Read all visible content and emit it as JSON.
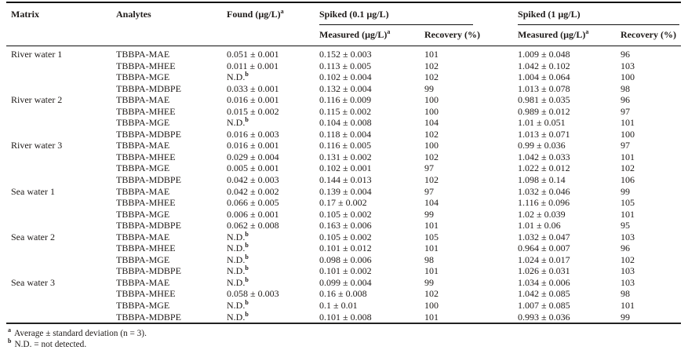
{
  "table": {
    "header": {
      "matrix": "Matrix",
      "analytes": "Analytes",
      "found": {
        "label": "Found (µg/L)",
        "sup": "a"
      },
      "spiked_01": "Spiked (0.1 µg/L)",
      "spiked_1": "Spiked (1 µg/L)",
      "measured": {
        "label": "Measured (µg/L)",
        "sup": "a"
      },
      "recovery": "Recovery (%)"
    },
    "groups": [
      {
        "matrix": "River water 1",
        "rows": [
          {
            "analyte": "TBBPA-MAE",
            "found": "0.051 ± 0.001",
            "m01": "0.152 ± 0.003",
            "r01": "101",
            "m1": "1.009 ± 0.048",
            "r1": "96"
          },
          {
            "analyte": "TBBPA-MHEE",
            "found": "0.011 ± 0.001",
            "m01": "0.113 ± 0.005",
            "r01": "102",
            "m1": "1.042 ± 0.102",
            "r1": "103"
          },
          {
            "analyte": "TBBPA-MGE",
            "found": "N.D.^b",
            "m01": "0.102 ± 0.004",
            "r01": "102",
            "m1": "1.004 ± 0.064",
            "r1": "100"
          },
          {
            "analyte": "TBBPA-MDBPE",
            "found": "0.033 ± 0.001",
            "m01": "0.132 ± 0.004",
            "r01": "99",
            "m1": "1.013 ± 0.078",
            "r1": "98"
          }
        ]
      },
      {
        "matrix": "River water 2",
        "rows": [
          {
            "analyte": "TBBPA-MAE",
            "found": "0.016 ± 0.001",
            "m01": "0.116 ± 0.009",
            "r01": "100",
            "m1": "0.981 ± 0.035",
            "r1": "96"
          },
          {
            "analyte": "TBBPA-MHEE",
            "found": "0.015 ± 0.002",
            "m01": "0.115 ± 0.002",
            "r01": "100",
            "m1": "0.989 ± 0.012",
            "r1": "97"
          },
          {
            "analyte": "TBBPA-MGE",
            "found": "N.D.^b",
            "m01": "0.104 ± 0.008",
            "r01": "104",
            "m1": "1.01 ± 0.051",
            "r1": "101"
          },
          {
            "analyte": "TBBPA-MDBPE",
            "found": "0.016 ± 0.003",
            "m01": "0.118 ± 0.004",
            "r01": "102",
            "m1": "1.013 ± 0.071",
            "r1": "100"
          }
        ]
      },
      {
        "matrix": "River water 3",
        "rows": [
          {
            "analyte": "TBBPA-MAE",
            "found": "0.016 ± 0.001",
            "m01": "0.116 ± 0.005",
            "r01": "100",
            "m1": "0.99 ± 0.036",
            "r1": "97"
          },
          {
            "analyte": "TBBPA-MHEE",
            "found": "0.029 ± 0.004",
            "m01": "0.131 ± 0.002",
            "r01": "102",
            "m1": "1.042 ± 0.033",
            "r1": "101"
          },
          {
            "analyte": "TBBPA-MGE",
            "found": "0.005 ± 0.001",
            "m01": "0.102 ± 0.001",
            "r01": "97",
            "m1": "1.022 ± 0.012",
            "r1": "102"
          },
          {
            "analyte": "TBBPA-MDBPE",
            "found": "0.042 ± 0.003",
            "m01": "0.144 ± 0.013",
            "r01": "102",
            "m1": "1.098 ± 0.14",
            "r1": "106"
          }
        ]
      },
      {
        "matrix": "Sea water 1",
        "rows": [
          {
            "analyte": "TBBPA-MAE",
            "found": "0.042 ± 0.002",
            "m01": "0.139 ± 0.004",
            "r01": "97",
            "m1": "1.032 ± 0.046",
            "r1": "99"
          },
          {
            "analyte": "TBBPA-MHEE",
            "found": "0.066 ± 0.005",
            "m01": "0.17 ± 0.002",
            "r01": "104",
            "m1": "1.116 ± 0.096",
            "r1": "105"
          },
          {
            "analyte": "TBBPA-MGE",
            "found": "0.006 ± 0.001",
            "m01": "0.105 ± 0.002",
            "r01": "99",
            "m1": "1.02 ± 0.039",
            "r1": "101"
          },
          {
            "analyte": "TBBPA-MDBPE",
            "found": "0.062 ± 0.008",
            "m01": "0.163 ± 0.006",
            "r01": "101",
            "m1": "1.01 ± 0.06",
            "r1": "95"
          }
        ]
      },
      {
        "matrix": "Sea water 2",
        "rows": [
          {
            "analyte": "TBBPA-MAE",
            "found": "N.D.^b",
            "m01": "0.105 ± 0.002",
            "r01": "105",
            "m1": "1.032 ± 0.047",
            "r1": "103"
          },
          {
            "analyte": "TBBPA-MHEE",
            "found": "N.D.^b",
            "m01": "0.101 ± 0.012",
            "r01": "101",
            "m1": "0.964 ± 0.007",
            "r1": "96"
          },
          {
            "analyte": "TBBPA-MGE",
            "found": "N.D.^b",
            "m01": "0.098 ± 0.006",
            "r01": "98",
            "m1": "1.024 ± 0.017",
            "r1": "102"
          },
          {
            "analyte": "TBBPA-MDBPE",
            "found": "N.D.^b",
            "m01": "0.101 ± 0.002",
            "r01": "101",
            "m1": "1.026 ± 0.031",
            "r1": "103"
          }
        ]
      },
      {
        "matrix": "Sea water 3",
        "rows": [
          {
            "analyte": "TBBPA-MAE",
            "found": "N.D.^b",
            "m01": "0.099 ± 0.004",
            "r01": "99",
            "m1": "1.034 ± 0.006",
            "r1": "103"
          },
          {
            "analyte": "TBBPA-MHEE",
            "found": "0.058 ± 0.003",
            "m01": "0.16 ± 0.008",
            "r01": "102",
            "m1": "1.042 ± 0.085",
            "r1": "98"
          },
          {
            "analyte": "TBBPA-MGE",
            "found": "N.D.^b",
            "m01": "0.1 ± 0.01",
            "r01": "100",
            "m1": "1.007 ± 0.085",
            "r1": "101"
          },
          {
            "analyte": "TBBPA-MDBPE",
            "found": "N.D.^b",
            "m01": "0.101 ± 0.008",
            "r01": "101",
            "m1": "0.993 ± 0.036",
            "r1": "99"
          }
        ]
      }
    ],
    "footnotes": [
      {
        "sup": "a",
        "text": "Average ± standard deviation (n = 3)."
      },
      {
        "sup": "b",
        "text": "N.D. = not detected."
      }
    ]
  }
}
